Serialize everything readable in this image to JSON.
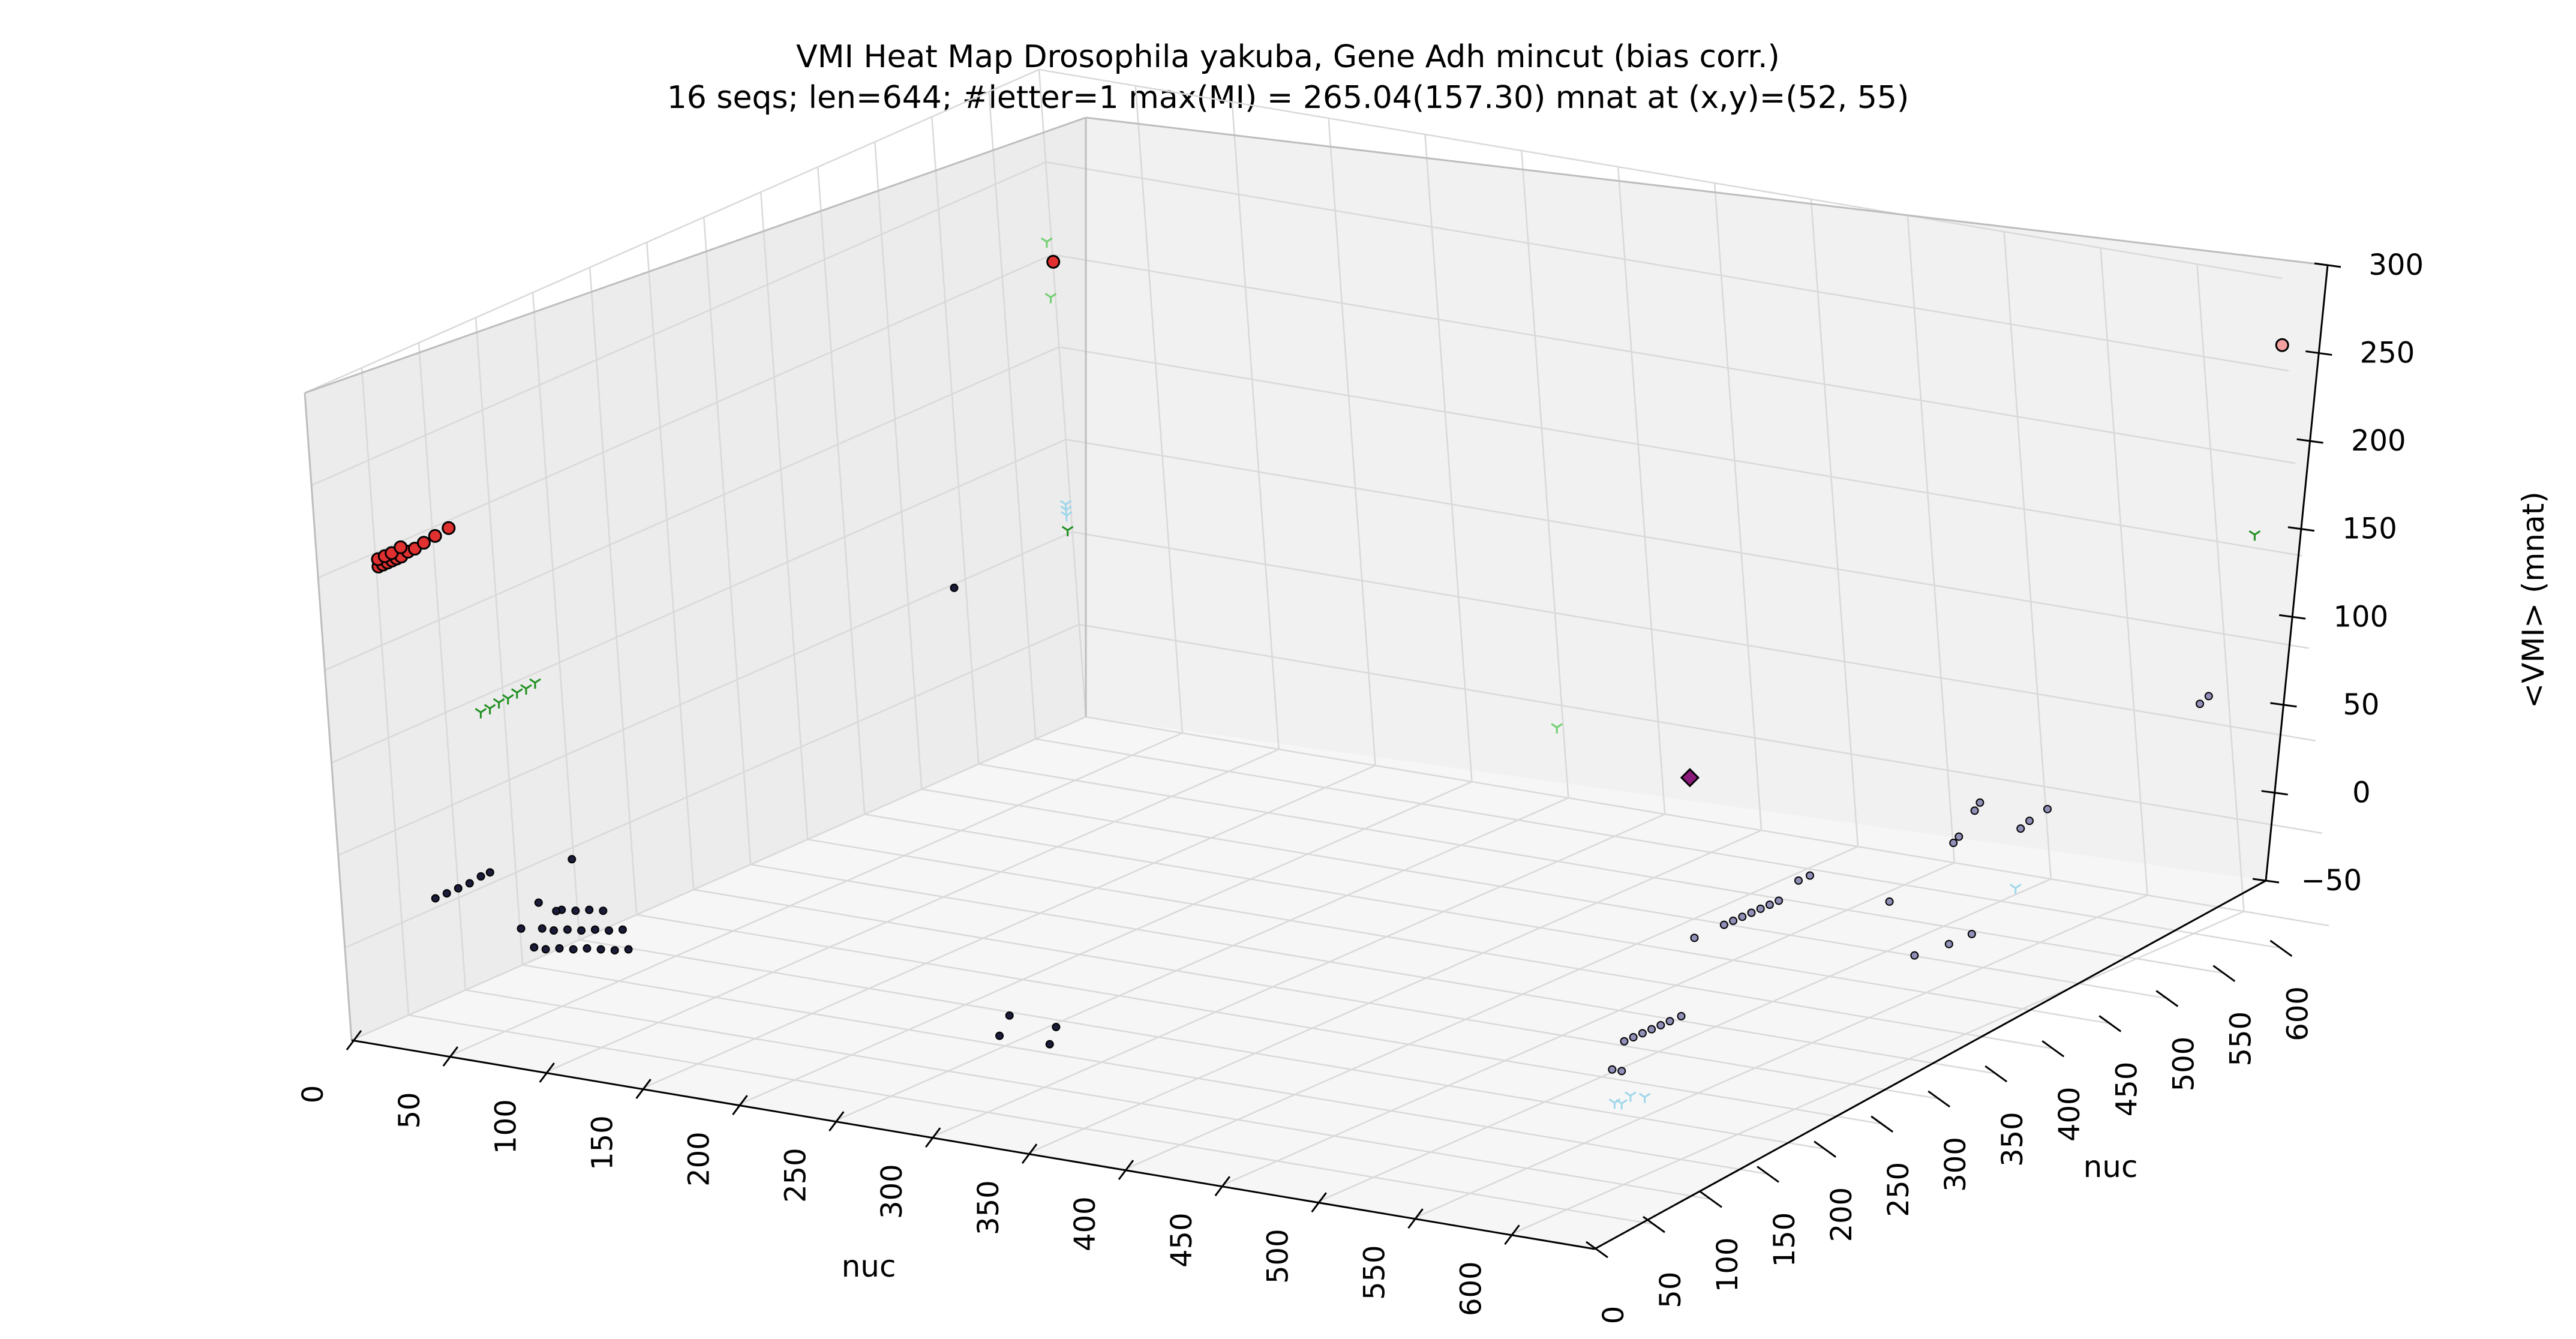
{
  "chart_data": {
    "type": "scatter3d",
    "title": "VMI Heat Map Drosophila yakuba, Gene Adh mincut (bias corr.)",
    "subtitle": "16 seqs; len=644; #letter=1 max(MI) = 265.04(157.30) mnat at (x,y)=(52, 55)",
    "xlabel": "nuc",
    "ylabel": "nuc",
    "zlabel": "<VMI> (mnat)",
    "xlim": [
      0,
      644
    ],
    "ylim": [
      0,
      644
    ],
    "zlim": [
      -50,
      300
    ],
    "x_ticks": [
      "0",
      "50",
      "100",
      "150",
      "200",
      "250",
      "300",
      "350",
      "400",
      "450",
      "500",
      "550",
      "600"
    ],
    "y_ticks": [
      "0",
      "50",
      "100",
      "150",
      "200",
      "250",
      "300",
      "350",
      "400",
      "450",
      "500",
      "550",
      "600"
    ],
    "z_ticks": [
      "−50",
      "0",
      "50",
      "100",
      "150",
      "200",
      "250",
      "300"
    ],
    "grid": true,
    "colors": {
      "dark": "#1b1b3a",
      "slate": "#8f8fb8",
      "red": "#e03030",
      "pink": "#f4a0a0",
      "purple": "#8a1a7a",
      "green": "#1f8f1f",
      "light_green": "#6fcf6f",
      "light_blue": "#9fd6ea",
      "pane_left": "#ececec",
      "pane_back": "#f1f1f1",
      "pane_floor": "#f6f6f6"
    },
    "series": [
      {
        "marker": "circle-large",
        "color": "red",
        "points": [
          [
            0,
            52,
            192
          ],
          [
            0,
            56,
            192
          ],
          [
            0,
            60,
            192
          ],
          [
            0,
            64,
            192
          ],
          [
            0,
            68,
            192
          ],
          [
            0,
            72,
            192
          ],
          [
            0,
            78,
            193
          ],
          [
            0,
            84,
            193
          ],
          [
            0,
            92,
            194
          ],
          [
            0,
            102,
            195
          ],
          [
            0,
            114,
            196
          ],
          [
            0,
            52,
            196
          ],
          [
            0,
            58,
            196
          ],
          [
            0,
            64,
            196
          ],
          [
            0,
            72,
            197
          ]
        ]
      },
      {
        "marker": "circle-large",
        "color": "red",
        "points": [
          [
            52,
            560,
            228
          ]
        ]
      },
      {
        "marker": "circle-large",
        "color": "pink",
        "points": [
          [
            644,
            640,
            265
          ]
        ]
      },
      {
        "marker": "diamond",
        "color": "purple",
        "points": [
          [
            644,
            110,
            175
          ]
        ]
      },
      {
        "marker": "circle-small",
        "color": "dark",
        "points": [
          [
            0,
            80,
            5
          ],
          [
            0,
            90,
            5
          ],
          [
            0,
            100,
            5
          ],
          [
            0,
            110,
            5
          ],
          [
            0,
            120,
            6
          ],
          [
            0,
            128,
            6
          ],
          [
            82,
            28,
            7
          ],
          [
            88,
            28,
            7
          ],
          [
            94,
            30,
            8
          ],
          [
            100,
            32,
            8
          ],
          [
            106,
            34,
            9
          ],
          [
            112,
            36,
            9
          ],
          [
            118,
            38,
            9
          ],
          [
            124,
            40,
            10
          ],
          [
            82,
            36,
            15
          ],
          [
            88,
            36,
            15
          ],
          [
            94,
            38,
            16
          ],
          [
            100,
            40,
            16
          ],
          [
            106,
            42,
            17
          ],
          [
            112,
            44,
            17
          ],
          [
            118,
            46,
            18
          ],
          [
            88,
            44,
            24
          ],
          [
            94,
            46,
            24
          ],
          [
            100,
            48,
            25
          ],
          [
            106,
            50,
            25
          ],
          [
            66,
            44,
            10
          ],
          [
            70,
            54,
            22
          ],
          [
            74,
            62,
            16
          ],
          [
            78,
            72,
            42
          ],
          [
            340,
            0,
            12
          ],
          [
            346,
            0,
            24
          ],
          [
            366,
            0,
            12
          ],
          [
            370,
            0,
            22
          ],
          [
            0,
            540,
            48
          ]
        ]
      },
      {
        "marker": "circle-small",
        "color": "slate",
        "points": [
          [
            644,
            38,
            52
          ],
          [
            644,
            46,
            52
          ],
          [
            644,
            54,
            52
          ],
          [
            644,
            62,
            52
          ],
          [
            644,
            70,
            52
          ],
          [
            644,
            78,
            52
          ],
          [
            644,
            88,
            52
          ],
          [
            644,
            104,
            90
          ],
          [
            644,
            26,
            40
          ],
          [
            644,
            34,
            37
          ],
          [
            644,
            130,
            90
          ],
          [
            644,
            138,
            90
          ],
          [
            644,
            146,
            90
          ],
          [
            644,
            154,
            90
          ],
          [
            644,
            162,
            90
          ],
          [
            644,
            170,
            90
          ],
          [
            644,
            178,
            90
          ],
          [
            644,
            196,
            96
          ],
          [
            644,
            206,
            96
          ],
          [
            644,
            272,
            64
          ],
          [
            644,
            290,
            30
          ],
          [
            644,
            320,
            28
          ],
          [
            644,
            340,
            28
          ],
          [
            644,
            330,
            80
          ],
          [
            644,
            335,
            82
          ],
          [
            644,
            350,
            92
          ],
          [
            644,
            355,
            95
          ],
          [
            644,
            388,
            72
          ],
          [
            644,
            396,
            74
          ],
          [
            644,
            412,
            76
          ],
          [
            644,
            548,
            96
          ],
          [
            644,
            556,
            98
          ]
        ]
      },
      {
        "marker": "tri-down",
        "color": "green",
        "points": [
          [
            0,
            130,
            92
          ],
          [
            0,
            138,
            92
          ],
          [
            0,
            146,
            93
          ],
          [
            0,
            154,
            93
          ],
          [
            0,
            162,
            94
          ],
          [
            0,
            170,
            94
          ],
          [
            0,
            178,
            95
          ],
          [
            0,
            640,
            52
          ],
          [
            644,
            605,
            172
          ]
        ]
      },
      {
        "marker": "tri-down",
        "color": "light_green",
        "points": [
          [
            0,
            640,
            178
          ],
          [
            0,
            640,
            208
          ],
          [
            644,
            0,
            232
          ]
        ]
      },
      {
        "marker": "tri-down",
        "color": "light_blue",
        "points": [
          [
            0,
            640,
            60
          ],
          [
            0,
            640,
            63
          ],
          [
            0,
            640,
            66
          ],
          [
            644,
            26,
            22
          ],
          [
            644,
            32,
            20
          ],
          [
            644,
            40,
            22
          ],
          [
            644,
            52,
            18
          ],
          [
            644,
            380,
            42
          ]
        ]
      }
    ]
  }
}
